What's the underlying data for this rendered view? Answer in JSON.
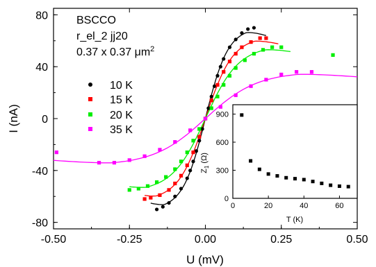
{
  "chart_data": [
    {
      "type": "scatter",
      "xlabel": "U (mV)",
      "ylabel": "I (nA)",
      "xlim": [
        -0.5,
        0.5
      ],
      "ylim": [
        -85,
        85
      ],
      "xticks": [
        "-0.50",
        "-0.25",
        "0.00",
        "0.25",
        "0.50"
      ],
      "yticks": [
        "-80",
        "-40",
        "0",
        "40",
        "80"
      ],
      "annotation": {
        "line1": "BSCCO",
        "line2": "r_el_2 jj20",
        "line3": "0.37 x 0.37 μm",
        "line3_sup": "2"
      },
      "legend_position": "left",
      "series": [
        {
          "name": "10 K",
          "color": "#000000",
          "marker": "circle",
          "x": [
            -0.16,
            -0.14,
            -0.12,
            -0.1,
            -0.08,
            -0.06,
            -0.05,
            -0.04,
            -0.03,
            -0.02,
            -0.01,
            0.0,
            0.01,
            0.02,
            0.03,
            0.04,
            0.05,
            0.06,
            0.08,
            0.1,
            0.12,
            0.14,
            0.16
          ],
          "y": [
            -70,
            -68,
            -65,
            -60,
            -54,
            -46,
            -40,
            -33,
            -25,
            -17,
            -8,
            0,
            8,
            17,
            25,
            33,
            40,
            46,
            55,
            61,
            66,
            69,
            70
          ]
        },
        {
          "name": "15 K",
          "color": "#ff0000",
          "marker": "square",
          "x": [
            -0.2,
            -0.18,
            -0.15,
            -0.12,
            -0.1,
            -0.08,
            -0.06,
            -0.04,
            -0.02,
            0.0,
            0.02,
            0.04,
            0.06,
            0.08,
            0.1,
            0.12,
            0.15,
            0.18,
            0.2
          ],
          "y": [
            -62,
            -61,
            -59,
            -55,
            -50,
            -44,
            -36,
            -26,
            -14,
            0,
            14,
            26,
            36,
            44,
            50,
            55,
            59,
            62,
            62
          ]
        },
        {
          "name": "20 K",
          "color": "#00ee00",
          "marker": "square",
          "x": [
            -0.25,
            -0.22,
            -0.19,
            -0.16,
            -0.13,
            -0.1,
            -0.08,
            -0.06,
            -0.04,
            -0.02,
            0.0,
            0.02,
            0.04,
            0.06,
            0.08,
            0.1,
            0.13,
            0.16,
            0.19,
            0.22,
            0.25,
            0.42
          ],
          "y": [
            -55,
            -54,
            -52,
            -49,
            -45,
            -39,
            -33,
            -26,
            -17,
            -8,
            0,
            8,
            17,
            26,
            33,
            39,
            45,
            50,
            53,
            55,
            55,
            49
          ]
        },
        {
          "name": "35 K",
          "color": "#ff00ff",
          "marker": "square",
          "x": [
            -0.49,
            -0.35,
            -0.3,
            -0.25,
            -0.2,
            -0.15,
            -0.1,
            -0.05,
            0.0,
            0.05,
            0.1,
            0.15,
            0.2,
            0.25,
            0.3,
            0.35
          ],
          "y": [
            -26,
            -34,
            -34,
            -32,
            -29,
            -24,
            -18,
            -9,
            0,
            9,
            18,
            25,
            30,
            34,
            36,
            36
          ]
        }
      ]
    },
    {
      "type": "scatter",
      "xlabel": "T (K)",
      "ylabel": "Z1 (Ω)",
      "ylabel_main": "Z",
      "ylabel_sub": "1",
      "ylabel_unit": " (Ω)",
      "xlim": [
        0,
        70
      ],
      "ylim": [
        0,
        1000
      ],
      "xticks": [
        "0",
        "20",
        "40",
        "60"
      ],
      "yticks": [
        "0",
        "300",
        "600",
        "900"
      ],
      "series": [
        {
          "name": "Z1",
          "color": "#000000",
          "marker": "square",
          "x": [
            5,
            10,
            15,
            20,
            25,
            30,
            35,
            40,
            45,
            50,
            55,
            60,
            65
          ],
          "y": [
            890,
            400,
            310,
            260,
            240,
            220,
            210,
            200,
            180,
            160,
            140,
            130,
            125
          ]
        }
      ]
    }
  ]
}
